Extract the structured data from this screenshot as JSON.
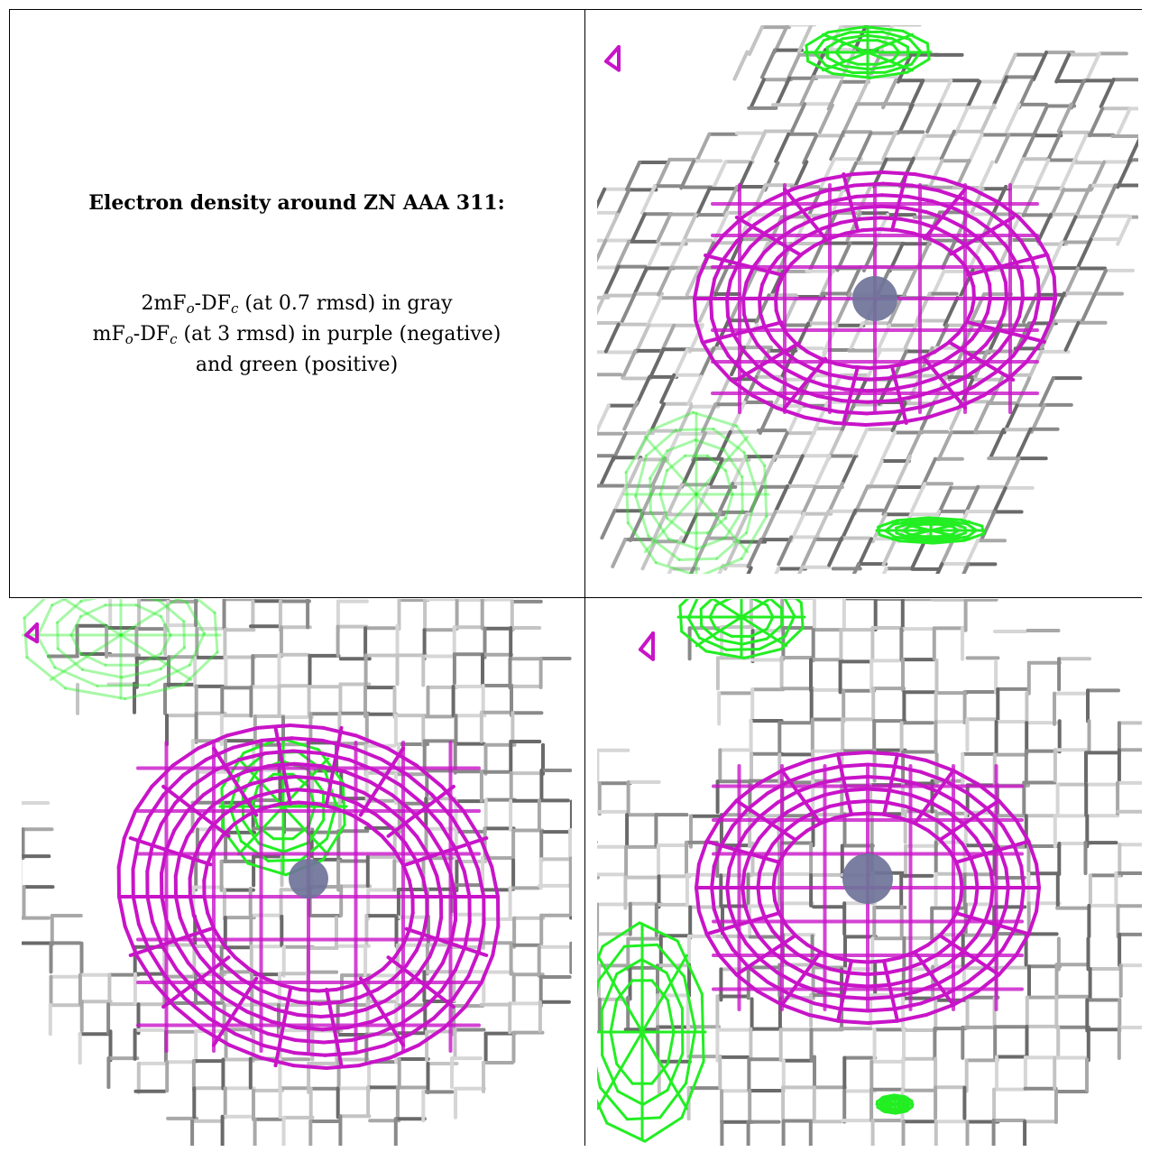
{
  "caption": {
    "title": "Electron density around ZN AAA 311:",
    "line1": {
      "a": "2mF",
      "a_sub": "o",
      "b": "-DF",
      "b_sub": "c",
      "rest": " (at 0.7 rmsd) in gray"
    },
    "line2": {
      "a": "mF",
      "a_sub": "o",
      "b": "-DF",
      "b_sub": "c",
      "rest": " (at 3 rmsd) in purple (negative)"
    },
    "line3": "and green (positive)"
  },
  "colors": {
    "map_2fofc": "#8a8a8a",
    "map_negative": "#c814c8",
    "map_positive": "#22ee22",
    "zinc_atom": "#6f7399",
    "border": "#000000"
  },
  "panels": [
    {
      "name": "view-1",
      "atom": "ZN AAA 311"
    },
    {
      "name": "view-2",
      "atom": "ZN AAA 311"
    },
    {
      "name": "view-3",
      "atom": "ZN AAA 311"
    }
  ]
}
